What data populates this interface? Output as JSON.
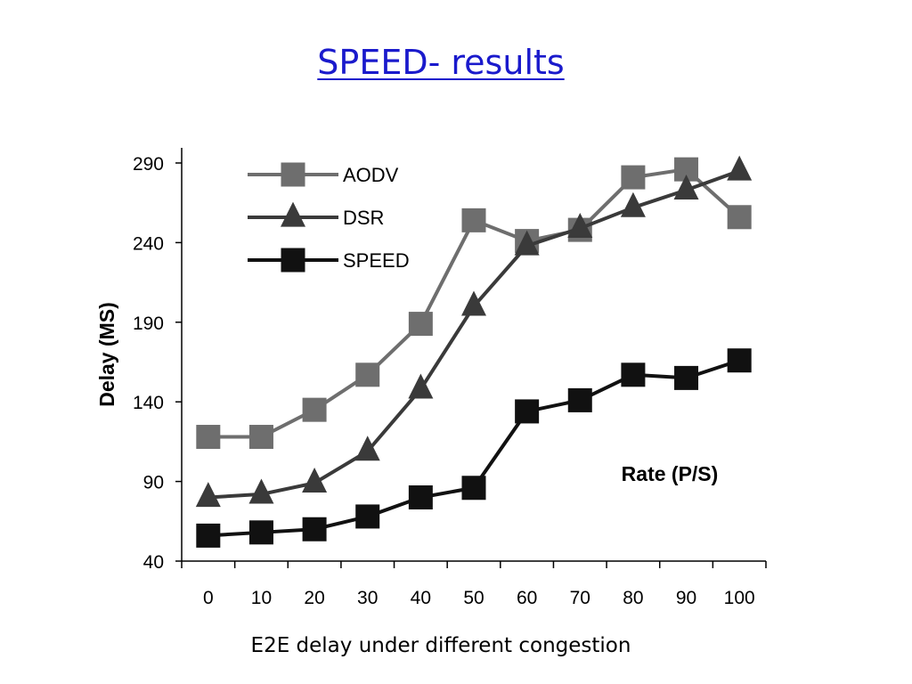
{
  "slide": {
    "title": "SPEED- results",
    "caption": "E2E delay under different congestion"
  },
  "chart_data": {
    "type": "line",
    "x": [
      0,
      10,
      20,
      30,
      40,
      50,
      60,
      70,
      80,
      90,
      100
    ],
    "xlabel": "Rate (P/S)",
    "ylabel": "Delay (MS)",
    "ylim": [
      40,
      290
    ],
    "yticks": [
      40,
      90,
      140,
      190,
      240,
      290
    ],
    "grid": false,
    "legend": "top-left",
    "series": [
      {
        "name": "AODV",
        "marker": "square",
        "color": "#6e6e6e",
        "values": [
          118,
          118,
          135,
          157,
          189,
          254,
          241,
          248,
          281,
          286,
          256
        ]
      },
      {
        "name": "DSR",
        "marker": "triangle",
        "color": "#3a3a3a",
        "values": [
          80,
          82,
          89,
          109,
          148,
          200,
          238,
          249,
          262,
          273,
          285
        ]
      },
      {
        "name": "SPEED",
        "marker": "square",
        "color": "#111111",
        "values": [
          56,
          58,
          60,
          68,
          80,
          86,
          134,
          141,
          157,
          155,
          166
        ]
      }
    ]
  }
}
